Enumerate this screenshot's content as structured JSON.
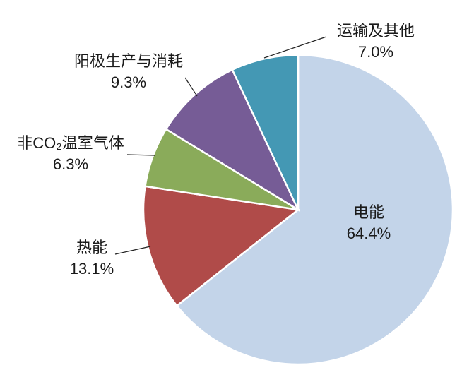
{
  "chart_data": {
    "type": "pie",
    "categories": [
      "电能",
      "热能",
      "非CO₂温室气体",
      "阳极生产与消耗",
      "运输及其他"
    ],
    "values": [
      64.4,
      13.1,
      6.3,
      9.3,
      7.0
    ],
    "value_labels": [
      "64.4%",
      "13.1%",
      "6.3%",
      "9.3%",
      "7.0%"
    ],
    "colors": [
      "#c3d4e9",
      "#b04b49",
      "#8aab5a",
      "#765c96",
      "#4498b4"
    ]
  }
}
